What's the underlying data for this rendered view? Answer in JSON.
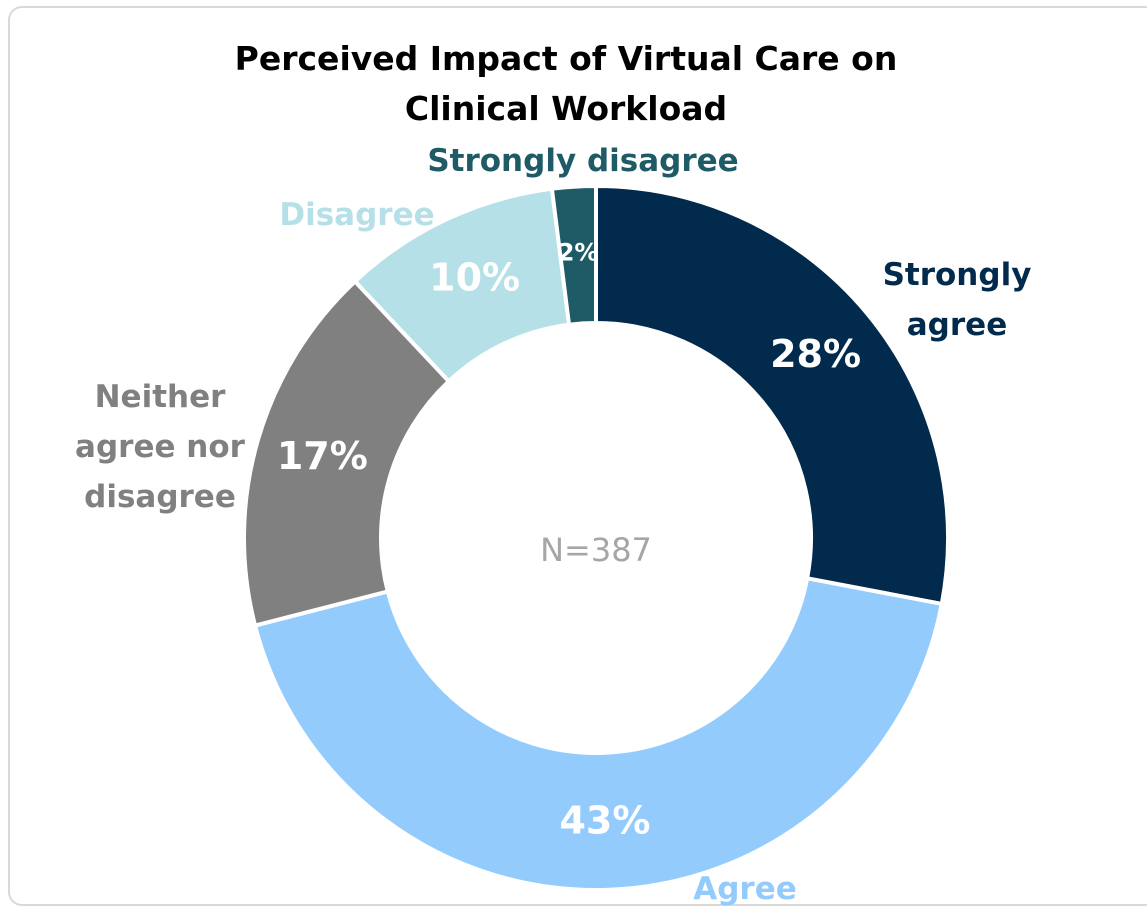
{
  "chart_data": {
    "type": "donut",
    "title": "Perceived Impact of Virtual Care on Clinical Workload",
    "annotation": "N=387",
    "categories": [
      "Strongly agree",
      "Agree",
      "Neither agree nor disagree",
      "Disagree",
      "Strongly disagree"
    ],
    "values": [
      28,
      43,
      17,
      10,
      2
    ],
    "value_labels": [
      "28%",
      "43%",
      "17%",
      "10%",
      "2%"
    ],
    "colors": [
      "#022a4c",
      "#93cbfc",
      "#808080",
      "#b6e0e8",
      "#1f5b66"
    ]
  }
}
